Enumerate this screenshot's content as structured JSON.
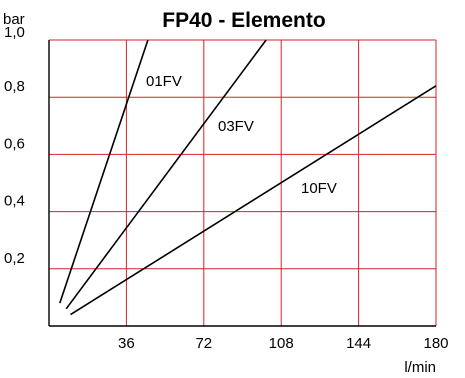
{
  "chart_data": {
    "type": "line",
    "title": "FP40 - Elemento",
    "ylabel": "bar",
    "xlabel": "l/min",
    "xlim": [
      0,
      180
    ],
    "ylim": [
      0,
      1.0
    ],
    "x_ticks": [
      36,
      72,
      108,
      144,
      180
    ],
    "y_ticks": [
      0.2,
      0.4,
      0.6,
      0.8,
      1.0
    ],
    "x_tick_labels": [
      "36",
      "72",
      "108",
      "144",
      "180"
    ],
    "y_tick_labels": [
      "0,2",
      "0,4",
      "0,6",
      "0,8",
      "1,0"
    ],
    "grid": true,
    "grid_color": "#d8212a",
    "series": [
      {
        "name": "01FV",
        "x": [
          5,
          46
        ],
        "y": [
          0.08,
          1.0
        ]
      },
      {
        "name": "03FV",
        "x": [
          8,
          101
        ],
        "y": [
          0.06,
          1.0
        ]
      },
      {
        "name": "10FV",
        "x": [
          10,
          180
        ],
        "y": [
          0.04,
          0.84
        ]
      }
    ]
  }
}
